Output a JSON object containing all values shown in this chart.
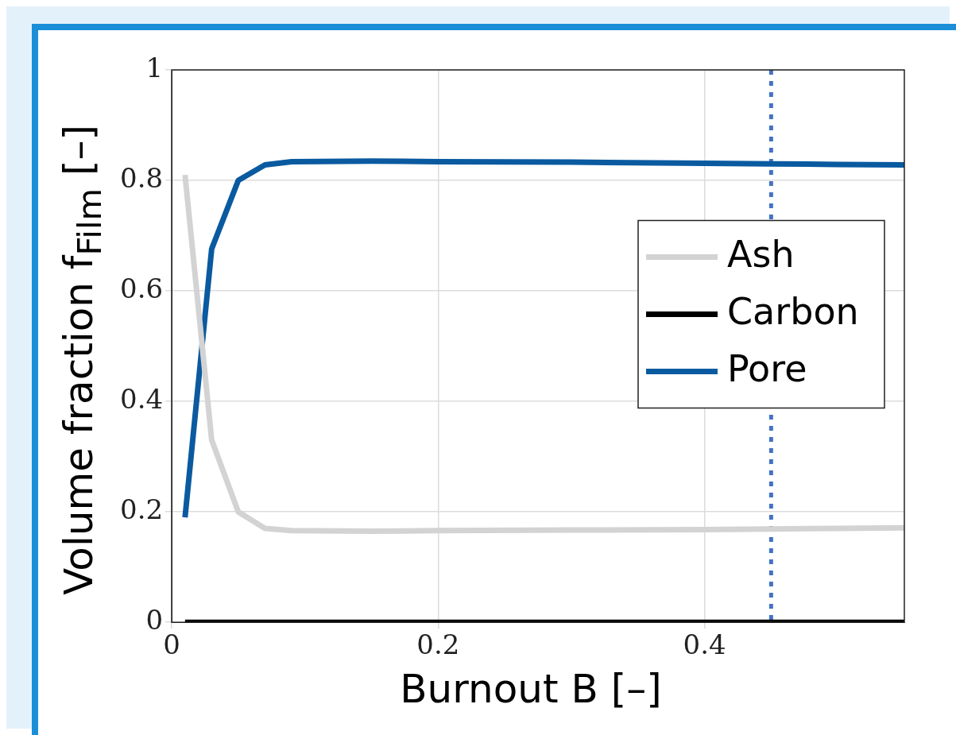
{
  "chart_data": {
    "type": "line",
    "xlabel": "Burnout B [–]",
    "ylabel": "Volume fraction f$_{Film}$ [–]",
    "xlim": [
      0,
      0.55
    ],
    "ylim": [
      0,
      1
    ],
    "xticks": [
      0,
      0.2,
      0.4
    ],
    "yticks": [
      0,
      0.2,
      0.4,
      0.6,
      0.8,
      1
    ],
    "grid": true,
    "legend": "right",
    "line_style": "solid",
    "marker": "none",
    "x": [
      0.01,
      0.03,
      0.05,
      0.07,
      0.09,
      0.15,
      0.2,
      0.3,
      0.4,
      0.45,
      0.5,
      0.55
    ],
    "series": [
      {
        "name": "Ash",
        "color": "#d3d3d3",
        "values": [
          0.81,
          0.33,
          0.2,
          0.17,
          0.166,
          0.165,
          0.166,
          0.167,
          0.168,
          0.169,
          0.17,
          0.171
        ]
      },
      {
        "name": "Carbon",
        "color": "#000000",
        "values": [
          0,
          0,
          0,
          0,
          0,
          0,
          0,
          0,
          0,
          0,
          0,
          0
        ]
      },
      {
        "name": "Pore",
        "color": "#0a5aa0",
        "values": [
          0.19,
          0.676,
          0.8,
          0.828,
          0.834,
          0.835,
          0.834,
          0.833,
          0.831,
          0.83,
          0.829,
          0.828
        ]
      }
    ],
    "ref_lines": [
      {
        "axis": "x",
        "value": 0.45,
        "color": "#4472c4",
        "line_style": "dotted"
      }
    ]
  }
}
